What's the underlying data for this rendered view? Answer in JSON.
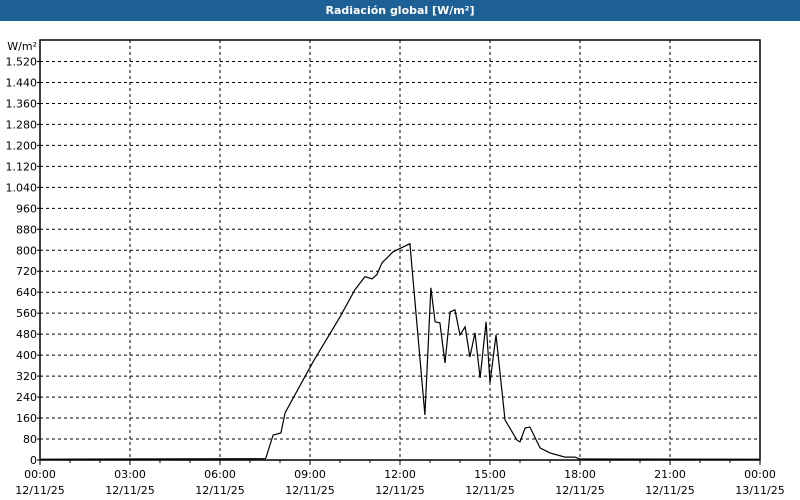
{
  "chart_data": {
    "type": "line",
    "title": "Radiación global [W/m²]",
    "ylabel": "W/m²",
    "ylim": [
      0,
      1520
    ],
    "yticks": [
      0,
      80,
      160,
      240,
      320,
      400,
      480,
      560,
      640,
      720,
      800,
      880,
      960,
      1040,
      1120,
      1200,
      1280,
      1360,
      1440,
      1520
    ],
    "ytick_labels": [
      "0",
      "80",
      "160",
      "240",
      "320",
      "400",
      "480",
      "560",
      "640",
      "720",
      "800",
      "880",
      "960",
      "1.040",
      "1.120",
      "1.200",
      "1.280",
      "1.360",
      "1.440",
      "1.520"
    ],
    "xlim_hours": [
      0,
      24
    ],
    "xticks": [
      {
        "time": "00:00",
        "date": "12/11/25"
      },
      {
        "time": "03:00",
        "date": "12/11/25"
      },
      {
        "time": "06:00",
        "date": "12/11/25"
      },
      {
        "time": "09:00",
        "date": "12/11/25"
      },
      {
        "time": "12:00",
        "date": "12/11/25"
      },
      {
        "time": "15:00",
        "date": "12/11/25"
      },
      {
        "time": "18:00",
        "date": "12/11/25"
      },
      {
        "time": "21:00",
        "date": "12/11/25"
      },
      {
        "time": "00:00",
        "date": "13/11/25"
      }
    ],
    "grid": true,
    "series": [
      {
        "color": "#000000",
        "x_hours": [
          0,
          7.5,
          7.53,
          7.77,
          8.03,
          8.17,
          9.1,
          10.0,
          10.5,
          10.83,
          11.07,
          11.23,
          11.4,
          11.77,
          12.33,
          12.83,
          13.03,
          13.17,
          13.33,
          13.5,
          13.67,
          13.83,
          14.0,
          14.17,
          14.33,
          14.5,
          14.67,
          14.87,
          15.0,
          15.2,
          15.5,
          15.9,
          16.0,
          16.17,
          16.33,
          16.67,
          17.0,
          17.5,
          17.83,
          18.0,
          24.0
        ],
        "values": [
          3,
          5,
          8,
          95,
          103,
          180,
          374,
          546,
          650,
          699,
          691,
          707,
          752,
          794,
          825,
          172,
          657,
          527,
          523,
          370,
          565,
          573,
          477,
          508,
          393,
          485,
          313,
          527,
          294,
          477,
          153,
          76,
          69,
          122,
          126,
          46,
          27,
          11,
          11,
          4,
          3
        ]
      }
    ]
  }
}
